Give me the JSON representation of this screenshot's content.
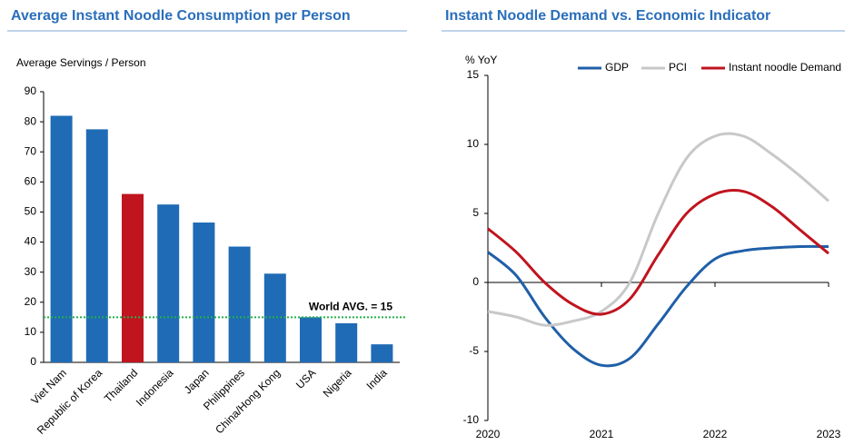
{
  "chart_data": [
    {
      "type": "bar",
      "title": "Average Instant Noodle Consumption per Person",
      "y_label": "Average Servings / Person",
      "categories": [
        "Viet Nam",
        "Republic of Korea",
        "Thailand",
        "Indonesia",
        "Japan",
        "Philippines",
        "China/Hong Kong",
        "USA",
        "Nigeria",
        "India"
      ],
      "values": [
        82,
        77.5,
        56,
        52.5,
        46.5,
        38.5,
        29.5,
        15,
        13,
        6
      ],
      "colors": [
        "#1f6bb5",
        "#1f6bb5",
        "#c0141f",
        "#1f6bb5",
        "#1f6bb5",
        "#1f6bb5",
        "#1f6bb5",
        "#1f6bb5",
        "#1f6bb5",
        "#1f6bb5"
      ],
      "ylim": [
        0,
        90
      ],
      "yticks": [
        0,
        10,
        20,
        30,
        40,
        50,
        60,
        70,
        80,
        90
      ],
      "reference_line": {
        "value": 15,
        "label": "World AVG. = 15",
        "color": "#22b04b"
      }
    },
    {
      "type": "line",
      "title": "Instant Noodle Demand vs. Economic Indicator",
      "y_label": "% YoY",
      "x": [
        2020,
        2020.25,
        2020.5,
        2020.75,
        2021,
        2021.25,
        2021.5,
        2021.75,
        2022,
        2022.25,
        2022.5,
        2022.75,
        2023
      ],
      "series": [
        {
          "name": "GDP",
          "color": "#1f5fa8",
          "values": [
            2.2,
            0.5,
            -2.5,
            -4.8,
            -6,
            -5.5,
            -3,
            -0.3,
            1.7,
            2.3,
            2.5,
            2.6,
            2.6
          ]
        },
        {
          "name": "PCI",
          "color": "#c8c8c8",
          "values": [
            -2.1,
            -2.5,
            -3.1,
            -2.8,
            -2.1,
            0,
            5,
            9,
            10.6,
            10.6,
            9.3,
            7.7,
            5.9
          ]
        },
        {
          "name": "Instant noodle Demand",
          "color": "#c0141f",
          "values": [
            3.9,
            2.2,
            0,
            -1.6,
            -2.3,
            -1.2,
            2,
            5,
            6.4,
            6.6,
            5.5,
            3.8,
            2.1
          ]
        }
      ],
      "xlim": [
        2020,
        2023
      ],
      "xticks": [
        2020,
        2021,
        2022,
        2023
      ],
      "ylim": [
        -10,
        15
      ],
      "yticks": [
        -10,
        -5,
        0,
        5,
        10,
        15
      ],
      "legend": "top"
    }
  ]
}
